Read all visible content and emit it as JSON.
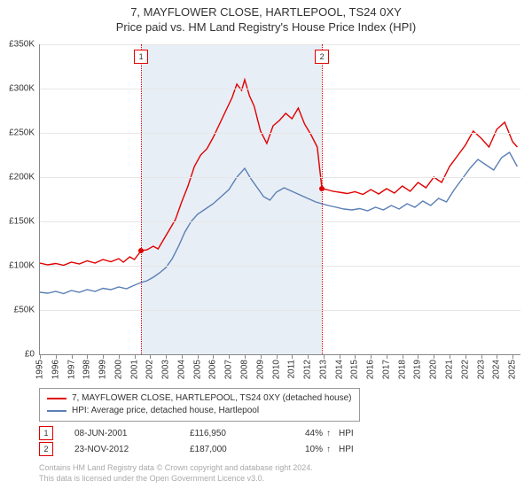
{
  "title_main": "7, MAYFLOWER CLOSE, HARTLEPOOL, TS24 0XY",
  "title_sub": "Price paid vs. HM Land Registry's House Price Index (HPI)",
  "chart_style": {
    "plot_bg": "#ffffff",
    "grid_color": "#e6e6e6",
    "axis_color": "#888888",
    "shaded_band_color": "#e8eef5",
    "marker_border": "#e00000",
    "dot_color": "#e00000",
    "line_colors": {
      "price_paid": "#e00000",
      "hpi": "#5b7fb5"
    },
    "line_width": 1.4,
    "font_family": "Arial",
    "title_fontsize": 13,
    "axis_label_fontsize": 10,
    "legend_fontsize": 10
  },
  "y_axis": {
    "min": 0,
    "max": 350000,
    "step": 50000,
    "labels": [
      "£0",
      "£50K",
      "£100K",
      "£150K",
      "£200K",
      "£250K",
      "£300K",
      "£350K"
    ]
  },
  "x_axis": {
    "min_year": 1995,
    "max_year": 2025.5,
    "tick_years": [
      1995,
      1996,
      1997,
      1998,
      1999,
      2000,
      2001,
      2002,
      2003,
      2004,
      2005,
      2006,
      2007,
      2008,
      2009,
      2010,
      2011,
      2012,
      2013,
      2014,
      2015,
      2016,
      2017,
      2018,
      2019,
      2020,
      2021,
      2022,
      2023,
      2024,
      2025
    ]
  },
  "shaded_band": {
    "start_year": 2001.42,
    "end_year": 2012.9
  },
  "markers": [
    {
      "id": "1",
      "year": 2001.42
    },
    {
      "id": "2",
      "year": 2012.9
    }
  ],
  "series": {
    "price_paid": [
      [
        1995.0,
        103000
      ],
      [
        1995.5,
        101000
      ],
      [
        1996.0,
        102500
      ],
      [
        1996.5,
        100500
      ],
      [
        1997.0,
        104000
      ],
      [
        1997.5,
        102000
      ],
      [
        1998.0,
        105500
      ],
      [
        1998.5,
        103000
      ],
      [
        1999.0,
        107000
      ],
      [
        1999.5,
        104500
      ],
      [
        2000.0,
        108000
      ],
      [
        2000.3,
        104000
      ],
      [
        2000.7,
        110000
      ],
      [
        2001.0,
        107000
      ],
      [
        2001.42,
        116950
      ],
      [
        2001.8,
        118000
      ],
      [
        2002.2,
        122000
      ],
      [
        2002.5,
        119000
      ],
      [
        2002.8,
        128000
      ],
      [
        2003.2,
        140000
      ],
      [
        2003.6,
        152000
      ],
      [
        2004.0,
        172000
      ],
      [
        2004.4,
        190000
      ],
      [
        2004.8,
        212000
      ],
      [
        2005.2,
        225000
      ],
      [
        2005.6,
        232000
      ],
      [
        2006.0,
        245000
      ],
      [
        2006.4,
        260000
      ],
      [
        2006.8,
        275000
      ],
      [
        2007.2,
        290000
      ],
      [
        2007.5,
        305000
      ],
      [
        2007.8,
        298000
      ],
      [
        2008.0,
        310000
      ],
      [
        2008.3,
        292000
      ],
      [
        2008.6,
        280000
      ],
      [
        2009.0,
        252000
      ],
      [
        2009.4,
        238000
      ],
      [
        2009.8,
        258000
      ],
      [
        2010.2,
        264000
      ],
      [
        2010.6,
        272000
      ],
      [
        2011.0,
        266000
      ],
      [
        2011.4,
        278000
      ],
      [
        2011.8,
        260000
      ],
      [
        2012.2,
        248000
      ],
      [
        2012.6,
        234000
      ],
      [
        2012.9,
        187000
      ],
      [
        2013.2,
        186000
      ],
      [
        2013.6,
        184000
      ],
      [
        2014.0,
        183000
      ],
      [
        2014.5,
        181500
      ],
      [
        2015.0,
        183500
      ],
      [
        2015.5,
        180500
      ],
      [
        2016.0,
        186000
      ],
      [
        2016.5,
        181000
      ],
      [
        2017.0,
        187000
      ],
      [
        2017.5,
        182000
      ],
      [
        2018.0,
        190000
      ],
      [
        2018.5,
        184000
      ],
      [
        2019.0,
        194000
      ],
      [
        2019.5,
        188000
      ],
      [
        2020.0,
        200000
      ],
      [
        2020.5,
        194000
      ],
      [
        2021.0,
        212000
      ],
      [
        2021.5,
        224000
      ],
      [
        2022.0,
        236000
      ],
      [
        2022.5,
        252000
      ],
      [
        2023.0,
        244000
      ],
      [
        2023.5,
        234000
      ],
      [
        2024.0,
        254000
      ],
      [
        2024.5,
        262000
      ],
      [
        2025.0,
        240000
      ],
      [
        2025.3,
        234000
      ]
    ],
    "hpi": [
      [
        1995.0,
        70000
      ],
      [
        1995.5,
        69000
      ],
      [
        1996.0,
        71000
      ],
      [
        1996.5,
        68500
      ],
      [
        1997.0,
        72000
      ],
      [
        1997.5,
        70000
      ],
      [
        1998.0,
        73000
      ],
      [
        1998.5,
        71000
      ],
      [
        1999.0,
        74500
      ],
      [
        1999.5,
        73000
      ],
      [
        2000.0,
        76000
      ],
      [
        2000.5,
        74000
      ],
      [
        2001.0,
        78000
      ],
      [
        2001.42,
        81000
      ],
      [
        2001.8,
        83000
      ],
      [
        2002.2,
        87000
      ],
      [
        2002.6,
        92000
      ],
      [
        2003.0,
        98000
      ],
      [
        2003.4,
        108000
      ],
      [
        2003.8,
        122000
      ],
      [
        2004.2,
        138000
      ],
      [
        2004.6,
        150000
      ],
      [
        2005.0,
        158000
      ],
      [
        2005.5,
        164000
      ],
      [
        2006.0,
        170000
      ],
      [
        2006.5,
        178000
      ],
      [
        2007.0,
        186000
      ],
      [
        2007.5,
        200000
      ],
      [
        2008.0,
        210000
      ],
      [
        2008.4,
        198000
      ],
      [
        2008.8,
        188000
      ],
      [
        2009.2,
        178000
      ],
      [
        2009.6,
        174000
      ],
      [
        2010.0,
        183000
      ],
      [
        2010.5,
        188000
      ],
      [
        2011.0,
        184000
      ],
      [
        2011.5,
        180000
      ],
      [
        2012.0,
        176000
      ],
      [
        2012.5,
        172000
      ],
      [
        2012.9,
        170000
      ],
      [
        2013.3,
        168000
      ],
      [
        2013.8,
        166000
      ],
      [
        2014.3,
        164000
      ],
      [
        2014.8,
        163000
      ],
      [
        2015.3,
        164500
      ],
      [
        2015.8,
        162000
      ],
      [
        2016.3,
        166000
      ],
      [
        2016.8,
        163000
      ],
      [
        2017.3,
        168000
      ],
      [
        2017.8,
        164000
      ],
      [
        2018.3,
        170000
      ],
      [
        2018.8,
        166000
      ],
      [
        2019.3,
        173000
      ],
      [
        2019.8,
        168000
      ],
      [
        2020.3,
        176000
      ],
      [
        2020.8,
        172000
      ],
      [
        2021.3,
        186000
      ],
      [
        2021.8,
        198000
      ],
      [
        2022.3,
        210000
      ],
      [
        2022.8,
        220000
      ],
      [
        2023.3,
        214000
      ],
      [
        2023.8,
        208000
      ],
      [
        2024.3,
        222000
      ],
      [
        2024.8,
        228000
      ],
      [
        2025.3,
        212000
      ]
    ]
  },
  "sale_points": [
    {
      "year": 2001.42,
      "value": 116950
    },
    {
      "year": 2012.9,
      "value": 187000
    }
  ],
  "legend": {
    "price_paid": "7, MAYFLOWER CLOSE, HARTLEPOOL, TS24 0XY (detached house)",
    "hpi": "HPI: Average price, detached house, Hartlepool"
  },
  "sales_rows": [
    {
      "id": "1",
      "date": "08-JUN-2001",
      "price": "£116,950",
      "pct": "44%",
      "arrow": "↑",
      "suffix": "HPI"
    },
    {
      "id": "2",
      "date": "23-NOV-2012",
      "price": "£187,000",
      "pct": "10%",
      "arrow": "↑",
      "suffix": "HPI"
    }
  ],
  "footer_line1": "Contains HM Land Registry data © Crown copyright and database right 2024.",
  "footer_line2": "This data is licensed under the Open Government Licence v3.0."
}
